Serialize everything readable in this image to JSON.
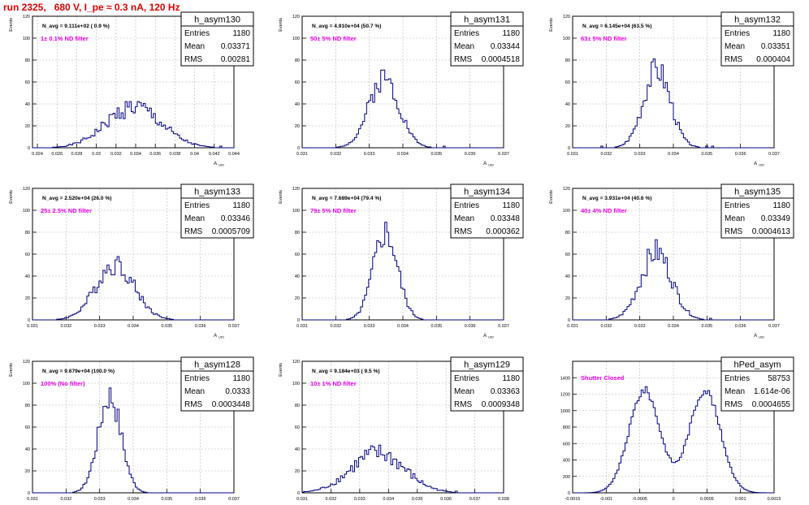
{
  "page_title": "run 2325,   680 V, I_pe ≈ 0.3 nA, 120 Hz",
  "colors": {
    "histogram": "#000080",
    "title_red": "#e00000",
    "annotation": "#e800e8",
    "grid": "#b8b8b8",
    "text": "#000000"
  },
  "stat_labels": {
    "entries": "Entries",
    "mean": "Mean",
    "rms": "RMS"
  },
  "chart_data": [
    {
      "type": "histogram",
      "name": "h_asym130",
      "ylabel": "Events",
      "xlabel": "A_UID",
      "navg": "N_avg = 9.111e+02 ( 0.9 %)",
      "filter": "1± 0.1% ND filter",
      "entries": "1180",
      "mean": "0.03371",
      "rms": "0.00281",
      "xlim": [
        0.0235,
        0.044
      ],
      "ylim": [
        0,
        120
      ],
      "xticks": [
        0.024,
        0.026,
        0.028,
        0.03,
        0.032,
        0.034,
        0.036,
        0.038,
        0.04,
        0.042,
        0.044
      ],
      "xtick_labels": [
        "0.024",
        "0.026",
        "0.028",
        "0.03",
        "0.032",
        "0.034",
        "0.036",
        "0.038",
        "0.04",
        "0.042",
        "0.044"
      ],
      "yticks": [
        0,
        20,
        40,
        60,
        80,
        100,
        120
      ],
      "peaks": [
        {
          "mu": 0.0338,
          "sigma": 0.0028,
          "amp": 37
        }
      ],
      "noise": 0.25,
      "seed": 1
    },
    {
      "type": "histogram",
      "name": "h_asym131",
      "ylabel": "Events",
      "xlabel": "A_UID",
      "navg": "N_avg = 4.910e+04 (50.7 %)",
      "filter": "50± 5% ND filter",
      "entries": "1180",
      "mean": "0.03344",
      "rms": "0.0004518",
      "xlim": [
        0.031,
        0.037
      ],
      "ylim": [
        0,
        120
      ],
      "xticks": [
        0.031,
        0.032,
        0.033,
        0.034,
        0.035,
        0.036,
        0.037
      ],
      "xtick_labels": [
        "0.031",
        "0.032",
        "0.033",
        "0.034",
        "0.035",
        "0.036",
        "0.037"
      ],
      "yticks": [
        0,
        20,
        40,
        60,
        80,
        100,
        120
      ],
      "peaks": [
        {
          "mu": 0.03344,
          "sigma": 0.00045,
          "amp": 64
        }
      ],
      "noise": 0.18,
      "seed": 2
    },
    {
      "type": "histogram",
      "name": "h_asym132",
      "ylabel": "Events",
      "xlabel": "A_UID",
      "navg": "N_avg = 6.145e+04 (63.5 %)",
      "filter": "63± 5% ND filter",
      "entries": "1180",
      "mean": "0.03351",
      "rms": "0.000404",
      "xlim": [
        0.031,
        0.037
      ],
      "ylim": [
        0,
        120
      ],
      "xticks": [
        0.031,
        0.032,
        0.033,
        0.034,
        0.035,
        0.036,
        0.037
      ],
      "xtick_labels": [
        "0.031",
        "0.032",
        "0.033",
        "0.034",
        "0.035",
        "0.036",
        "0.037"
      ],
      "yticks": [
        0,
        20,
        40,
        60,
        80,
        100,
        120
      ],
      "peaks": [
        {
          "mu": 0.03351,
          "sigma": 0.0004,
          "amp": 72
        }
      ],
      "noise": 0.18,
      "seed": 3
    },
    {
      "type": "histogram",
      "name": "h_asym133",
      "ylabel": "Events",
      "xlabel": "A_UID",
      "navg": "N_avg = 2.520e+04 (26.0 %)",
      "filter": "25± 2.5% ND filter",
      "entries": "1180",
      "mean": "0.03346",
      "rms": "0.0005709",
      "xlim": [
        0.031,
        0.037
      ],
      "ylim": [
        0,
        120
      ],
      "xticks": [
        0.031,
        0.032,
        0.033,
        0.034,
        0.035,
        0.036,
        0.037
      ],
      "xtick_labels": [
        "0.031",
        "0.032",
        "0.033",
        "0.034",
        "0.035",
        "0.036",
        "0.037"
      ],
      "yticks": [
        0,
        20,
        40,
        60,
        80,
        100,
        120
      ],
      "peaks": [
        {
          "mu": 0.03346,
          "sigma": 0.00057,
          "amp": 51
        }
      ],
      "noise": 0.2,
      "seed": 4
    },
    {
      "type": "histogram",
      "name": "h_asym134",
      "ylabel": "Events",
      "xlabel": "A_UID",
      "navg": "N_avg = 7.689e+04 (79.4 %)",
      "filter": "79± 5% ND filter",
      "entries": "1180",
      "mean": "0.03348",
      "rms": "0.000362",
      "xlim": [
        0.031,
        0.037
      ],
      "ylim": [
        0,
        120
      ],
      "xticks": [
        0.031,
        0.032,
        0.033,
        0.034,
        0.035,
        0.036,
        0.037
      ],
      "xtick_labels": [
        "0.031",
        "0.032",
        "0.033",
        "0.034",
        "0.035",
        "0.036",
        "0.037"
      ],
      "yticks": [
        0,
        20,
        40,
        60,
        80,
        100,
        120
      ],
      "peaks": [
        {
          "mu": 0.03348,
          "sigma": 0.00036,
          "amp": 80
        }
      ],
      "noise": 0.18,
      "seed": 5
    },
    {
      "type": "histogram",
      "name": "h_asym135",
      "ylabel": "Events",
      "xlabel": "A_UID",
      "navg": "N_avg = 3.931e+04 (40.6 %)",
      "filter": "40± 4% ND filter",
      "entries": "1180",
      "mean": "0.03349",
      "rms": "0.0004613",
      "xlim": [
        0.031,
        0.037
      ],
      "ylim": [
        0,
        120
      ],
      "xticks": [
        0.031,
        0.032,
        0.033,
        0.034,
        0.035,
        0.036,
        0.037
      ],
      "xtick_labels": [
        "0.031",
        "0.032",
        "0.033",
        "0.034",
        "0.035",
        "0.036",
        "0.037"
      ],
      "yticks": [
        0,
        20,
        40,
        60,
        80,
        100,
        120
      ],
      "peaks": [
        {
          "mu": 0.03349,
          "sigma": 0.00046,
          "amp": 62
        }
      ],
      "noise": 0.2,
      "seed": 6
    },
    {
      "type": "histogram",
      "name": "h_asym128",
      "ylabel": "Events",
      "xlabel": "A_UID",
      "navg": "N_avg = 9.679e+04 (100.0 %)",
      "filter": "100% (No filter)",
      "entries": "1180",
      "mean": "0.0333",
      "rms": "0.0003448",
      "xlim": [
        0.031,
        0.037
      ],
      "ylim": [
        0,
        120
      ],
      "xticks": [
        0.031,
        0.032,
        0.033,
        0.034,
        0.035,
        0.036,
        0.037
      ],
      "xtick_labels": [
        "0.031",
        "0.032",
        "0.033",
        "0.034",
        "0.035",
        "0.036",
        "0.037"
      ],
      "yticks": [
        0,
        20,
        40,
        60,
        80,
        100,
        120
      ],
      "peaks": [
        {
          "mu": 0.0333,
          "sigma": 0.00034,
          "amp": 88
        }
      ],
      "noise": 0.16,
      "seed": 7
    },
    {
      "type": "histogram",
      "name": "h_asym129",
      "ylabel": "Events",
      "xlabel": "A_UID",
      "navg": "N_avg = 9.184e+03 ( 9.5 %)",
      "filter": "10± 1% ND filter",
      "entries": "1180",
      "mean": "0.03363",
      "rms": "0.0009348",
      "xlim": [
        0.031,
        0.038
      ],
      "ylim": [
        0,
        120
      ],
      "xticks": [
        0.031,
        0.032,
        0.033,
        0.034,
        0.035,
        0.036,
        0.037,
        0.038
      ],
      "xtick_labels": [
        "0.031",
        "0.032",
        "0.033",
        "0.034",
        "0.035",
        "0.036",
        "0.037",
        "0.038"
      ],
      "yticks": [
        0,
        20,
        40,
        60,
        80,
        100,
        120
      ],
      "peaks": [
        {
          "mu": 0.03363,
          "sigma": 0.00093,
          "amp": 36
        }
      ],
      "noise": 0.25,
      "seed": 8
    },
    {
      "type": "histogram",
      "name": "hPed_asym",
      "ylabel": "",
      "xlabel": "",
      "navg": "",
      "filter": "Shutter Closed",
      "entries": "58753",
      "mean": "1.614e-06",
      "rms": "0.0004655",
      "xlim": [
        -0.0015,
        0.0015
      ],
      "ylim": [
        0,
        1600
      ],
      "xticks": [
        -0.0015,
        -0.001,
        -0.0005,
        0,
        0.0005,
        0.001,
        0.0015
      ],
      "xtick_labels": [
        "-0.0015",
        "-0.001",
        "-0.0005",
        "0",
        "0.0005",
        "0.001",
        "0.0015"
      ],
      "yticks": [
        0,
        200,
        400,
        600,
        800,
        1000,
        1200,
        1400
      ],
      "peaks": [
        {
          "mu": -0.00043,
          "sigma": 0.00023,
          "amp": 1250
        },
        {
          "mu": 0.00047,
          "sigma": 0.00023,
          "amp": 1250
        }
      ],
      "noise": 0.04,
      "seed": 9
    }
  ]
}
